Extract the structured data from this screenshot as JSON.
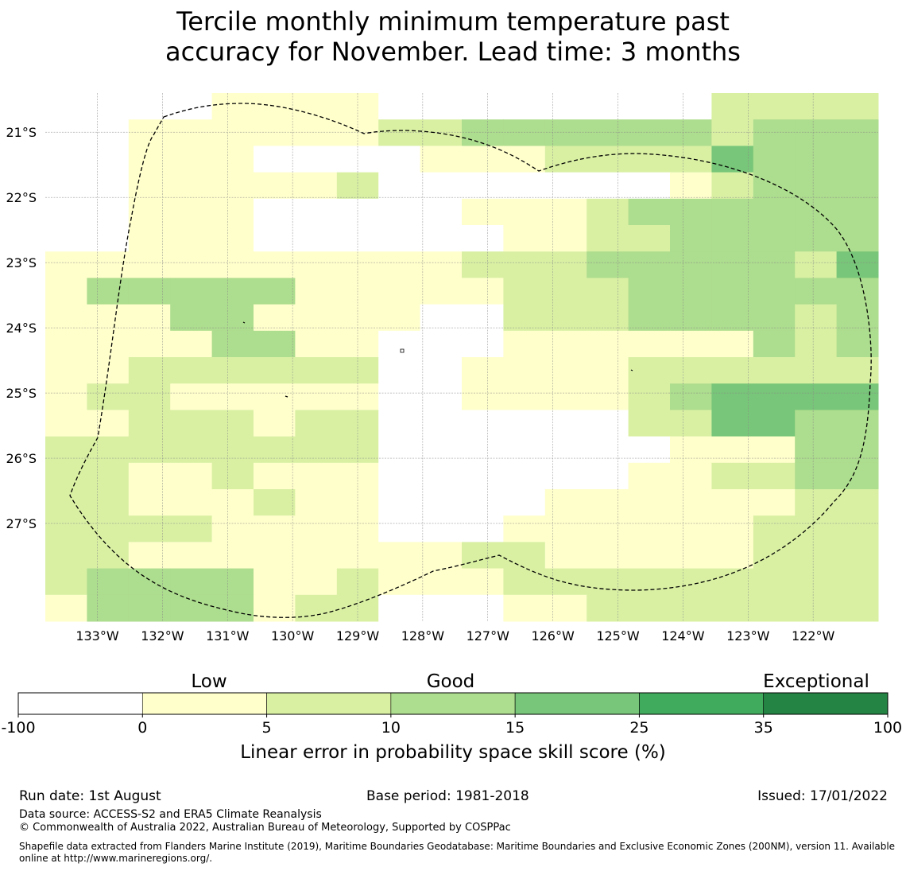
{
  "title": {
    "line1": "Tercile monthly minimum temperature past",
    "line2": "accuracy for November. Lead time: 3 months"
  },
  "map": {
    "lon_range": [
      -133.8,
      -121.0
    ],
    "lat_range": [
      -28.5,
      -20.4
    ],
    "lon_ticks": [
      {
        "value": -133,
        "label": "133°W"
      },
      {
        "value": -132,
        "label": "132°W"
      },
      {
        "value": -131,
        "label": "131°W"
      },
      {
        "value": -130,
        "label": "130°W"
      },
      {
        "value": -129,
        "label": "129°W"
      },
      {
        "value": -128,
        "label": "128°W"
      },
      {
        "value": -127,
        "label": "127°W"
      },
      {
        "value": -126,
        "label": "126°W"
      },
      {
        "value": -125,
        "label": "125°W"
      },
      {
        "value": -124,
        "label": "124°W"
      },
      {
        "value": -123,
        "label": "123°W"
      },
      {
        "value": -122,
        "label": "122°W"
      }
    ],
    "lat_ticks": [
      {
        "value": -21,
        "label": "21°S"
      },
      {
        "value": -22,
        "label": "22°S"
      },
      {
        "value": -23,
        "label": "23°S"
      },
      {
        "value": -24,
        "label": "24°S"
      },
      {
        "value": -25,
        "label": "25°S"
      },
      {
        "value": -26,
        "label": "26°S"
      },
      {
        "value": -27,
        "label": "27°S"
      }
    ],
    "grid_lines": true,
    "cell_size_deg": [
      0.833,
      0.556
    ],
    "grid_rows": [
      "00001111000000002222",
      "00111111223333332333",
      "00111000011122224333",
      "00111112000000012333",
      "00111000001112333333",
      "00111000000112233333",
      "11111111112223333324",
      "13333311111222333333",
      "11133111100222333323",
      "11113311000111111323",
      "11222222001111222222",
      "12211111001111234444",
      "11222122000000224433",
      "22222222000000011133",
      "22112111000000112233",
      "22111211000011111122",
      "22221111000111111222",
      "22111111112211111222",
      "23333112111222222222",
      "13333122000112222222"
    ],
    "boundary_outline": "Exclusive Economic Zone (200NM)"
  },
  "colorbar": {
    "boundaries": [
      "-100",
      "0",
      "5",
      "10",
      "15",
      "25",
      "35",
      "100"
    ],
    "colors": [
      "#ffffff",
      "#ffffcc",
      "#d9f0a3",
      "#addd8e",
      "#78c679",
      "#41ab5d",
      "#238443"
    ],
    "categories": [
      "Low",
      "Good",
      "Exceptional"
    ],
    "label": "Linear error in probability space skill score (%)"
  },
  "cell_colors": [
    "#ffffff",
    "#ffffcc",
    "#d9f0a3",
    "#addd8e",
    "#78c679"
  ],
  "footer": {
    "run_date": "Run date: 1st August",
    "base_period": "Base period: 1981-2018",
    "issued": "Issued: 17/01/2022",
    "data_source": "Data source: ACCESS-S2 and ERA5 Climate Reanalysis",
    "copyright": "© Commonwealth of Australia 2022, Australian Bureau of Meteorology, Supported by COSPPac",
    "shapefile_note": "Shapefile data extracted from Flanders Marine Institute (2019), Maritime Boundaries Geodatabase: Maritime Boundaries and Exclusive Economic Zones (200NM), version 11. Available online at http://www.marineregions.org/."
  }
}
